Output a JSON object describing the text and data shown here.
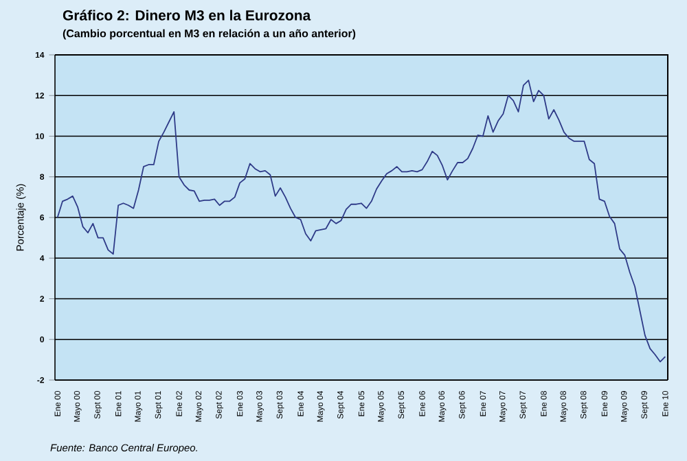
{
  "chart_data": {
    "type": "line",
    "title": "Gráfico 2: Dinero M3 en la Eurozona",
    "subtitle": "(Cambio porcentual en M3 en relación a un año anterior)",
    "ylabel": "Porcentaje (%)",
    "annotations": [
      "Fuente: Banco Central Europeo."
    ],
    "categories": [
      "Ene 00",
      null,
      null,
      null,
      "Mayo 00",
      null,
      null,
      null,
      "Sept 00",
      null,
      null,
      null,
      "Ene 01",
      null,
      null,
      null,
      "Mayo 01",
      null,
      null,
      null,
      "Sept 01",
      null,
      null,
      null,
      "Ene 02",
      null,
      null,
      null,
      "Mayo 02",
      null,
      null,
      null,
      "Sept 02",
      null,
      null,
      null,
      "Ene 03",
      null,
      null,
      null,
      "Mayo 03",
      null,
      null,
      null,
      "Sept 03",
      null,
      null,
      null,
      "Ene 04",
      null,
      null,
      null,
      "Mayo 04",
      null,
      null,
      null,
      "Sept 04",
      null,
      null,
      null,
      "Ene 05",
      null,
      null,
      null,
      "Mayo 05",
      null,
      null,
      null,
      "Sept 05",
      null,
      null,
      null,
      "Ene 06",
      null,
      null,
      null,
      "Mayo 06",
      null,
      null,
      null,
      "Sept 06",
      null,
      null,
      null,
      "Ene 07",
      null,
      null,
      null,
      "Mayo 07",
      null,
      null,
      null,
      "Sept 07",
      null,
      null,
      null,
      "Ene 08",
      null,
      null,
      null,
      "Mayo 08",
      null,
      null,
      null,
      "Sept 08",
      null,
      null,
      null,
      "Ene 09",
      null,
      null,
      null,
      "Mayo 09",
      null,
      null,
      null,
      "Sept 09",
      null,
      null,
      null,
      "Ene 10"
    ],
    "series": [
      {
        "color": "#2e3a87",
        "values": [
          6.0,
          6.8,
          6.9,
          7.05,
          6.5,
          5.55,
          5.25,
          5.7,
          5.0,
          5.0,
          4.4,
          4.2,
          6.6,
          6.7,
          6.6,
          6.45,
          7.35,
          8.5,
          8.6,
          8.6,
          9.75,
          10.2,
          10.7,
          11.2,
          8.0,
          7.6,
          7.35,
          7.3,
          6.8,
          6.85,
          6.85,
          6.9,
          6.6,
          6.8,
          6.8,
          7.0,
          7.7,
          7.9,
          8.65,
          8.4,
          8.25,
          8.3,
          8.1,
          7.05,
          7.45,
          7.0,
          6.45,
          6.0,
          5.9,
          5.2,
          4.85,
          5.35,
          5.4,
          5.45,
          5.9,
          5.7,
          5.85,
          6.4,
          6.65,
          6.65,
          6.7,
          6.45,
          6.8,
          7.4,
          7.8,
          8.15,
          8.3,
          8.5,
          8.25,
          8.25,
          8.3,
          8.25,
          8.35,
          8.75,
          9.25,
          9.05,
          8.55,
          7.85,
          8.3,
          8.7,
          8.7,
          8.9,
          9.4,
          10.05,
          10.0,
          11.0,
          10.2,
          10.75,
          11.1,
          12.0,
          11.75,
          11.2,
          12.5,
          12.75,
          11.7,
          12.25,
          12.0,
          10.85,
          11.3,
          10.8,
          10.2,
          9.9,
          9.75,
          9.75,
          9.75,
          8.85,
          8.65,
          6.9,
          6.8,
          6.05,
          5.7,
          4.45,
          4.15,
          3.3,
          2.6,
          1.4,
          0.2,
          -0.45,
          -0.75,
          -1.1,
          -0.85
        ]
      }
    ],
    "ylim": [
      -2,
      14
    ],
    "yticks": [
      -2,
      0,
      2,
      4,
      6,
      8,
      10,
      12,
      14
    ],
    "grid": "y",
    "marker": "none",
    "line_style": "solid"
  }
}
